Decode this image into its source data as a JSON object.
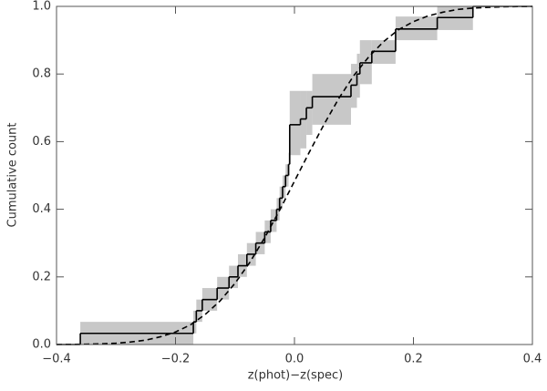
{
  "chart_data": {
    "type": "step",
    "x_label": "z(phot)−z(spec)",
    "y_label": "Cumulative count",
    "xlim": [
      -0.4,
      0.4
    ],
    "ylim": [
      0,
      1
    ],
    "xticks": [
      {
        "value": -0.4,
        "label": "−0.4"
      },
      {
        "value": -0.2,
        "label": "−0.2"
      },
      {
        "value": 0,
        "label": "0.0"
      },
      {
        "value": 0.2,
        "label": "0.2"
      },
      {
        "value": 0.4,
        "label": "0.4"
      }
    ],
    "yticks": [
      {
        "value": 0,
        "label": "0.0"
      },
      0.2,
      0.4,
      0.6,
      0.8,
      {
        "value": 1,
        "label": "1.0"
      }
    ],
    "step": {
      "color": "#000000",
      "band_color": "#c8c8c8",
      "x": [
        -0.4,
        -0.36,
        -0.17,
        -0.165,
        -0.155,
        -0.13,
        -0.11,
        -0.095,
        -0.08,
        -0.065,
        -0.05,
        -0.04,
        -0.03,
        -0.025,
        -0.02,
        -0.015,
        -0.01,
        -0.008,
        0.01,
        0.02,
        0.03,
        0.095,
        0.105,
        0.11,
        0.13,
        0.17,
        0.24,
        0.3
      ],
      "values": [
        0,
        0.033,
        0.067,
        0.1,
        0.133,
        0.167,
        0.2,
        0.233,
        0.267,
        0.3,
        0.333,
        0.367,
        0.4,
        0.433,
        0.467,
        0.5,
        0.533,
        0.65,
        0.667,
        0.7,
        0.733,
        0.767,
        0.8,
        0.833,
        0.867,
        0.933,
        0.967,
        1.0
      ],
      "band_lower": [
        null,
        0,
        0.033,
        0.067,
        0.1,
        0.133,
        0.167,
        0.2,
        0.233,
        0.267,
        0.3,
        0.333,
        0.367,
        0.4,
        0.433,
        0.467,
        0.5,
        0.56,
        0.58,
        0.62,
        0.65,
        0.7,
        0.73,
        0.77,
        0.83,
        0.9,
        0.93,
        null
      ],
      "band_upper": [
        null,
        0.067,
        0.1,
        0.133,
        0.167,
        0.2,
        0.233,
        0.267,
        0.3,
        0.333,
        0.367,
        0.4,
        0.433,
        0.467,
        0.5,
        0.533,
        0.567,
        0.75,
        0.75,
        0.75,
        0.8,
        0.83,
        0.86,
        0.9,
        0.9,
        0.97,
        1.0,
        null
      ]
    },
    "curve": {
      "color": "#000000",
      "dashed": true,
      "x": [
        -0.4,
        -0.375,
        -0.35,
        -0.325,
        -0.3,
        -0.275,
        -0.25,
        -0.225,
        -0.2,
        -0.175,
        -0.15,
        -0.125,
        -0.1,
        -0.075,
        -0.05,
        -0.025,
        0,
        0.025,
        0.05,
        0.075,
        0.1,
        0.125,
        0.15,
        0.175,
        0.2,
        0.225,
        0.25,
        0.275,
        0.3,
        0.325,
        0.35,
        0.375,
        0.4
      ],
      "values": [
        0.0002,
        0.0005,
        0.001,
        0.002,
        0.004,
        0.0075,
        0.013,
        0.023,
        0.037,
        0.058,
        0.089,
        0.129,
        0.181,
        0.243,
        0.316,
        0.397,
        0.483,
        0.569,
        0.652,
        0.729,
        0.796,
        0.851,
        0.896,
        0.931,
        0.955,
        0.972,
        0.983,
        0.991,
        0.995,
        0.997,
        0.9987,
        0.9994,
        0.9997
      ]
    }
  }
}
